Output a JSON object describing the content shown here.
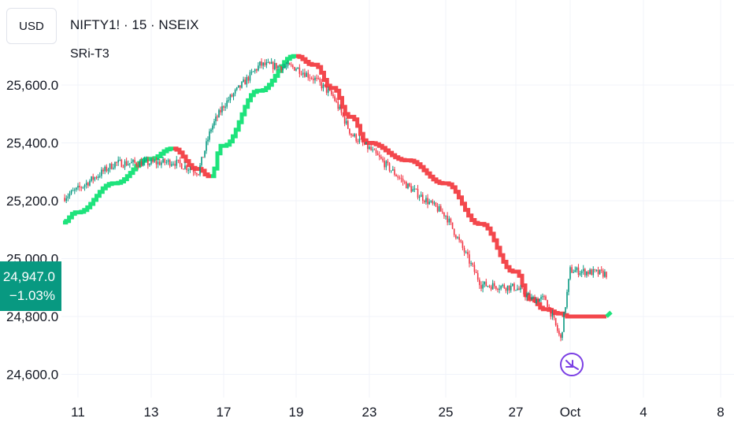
{
  "header": {
    "currency": "USD",
    "symbol_title": "NIFTY1! · 15 · NSEIX",
    "indicator_name": "SRi-T3"
  },
  "price_badge": {
    "price": "24,947.0",
    "change": "−1.03%",
    "color": "#089981"
  },
  "event_marker": {
    "icon": "flight-arrow-icon",
    "color": "#7b3fe4",
    "date": "Oct"
  },
  "colors": {
    "bullish": "#1ee37c",
    "bearish": "#f3474c",
    "grid": "#f0f3fa"
  },
  "chart_data": {
    "type": "line",
    "title": "NIFTY1! · 15 · NSEIX",
    "y_ticks": [
      "25,600.0",
      "25,400.0",
      "25,200.0",
      "25,000.0",
      "24,800.0",
      "24,600.0"
    ],
    "y_tick_values": [
      25600,
      25400,
      25200,
      25000,
      24800,
      24600
    ],
    "x_ticks": [
      "11",
      "13",
      "17",
      "19",
      "23",
      "25",
      "27",
      "Oct",
      "4",
      "8"
    ],
    "ylim": [
      24560,
      25760
    ],
    "grid": true,
    "last_price": 24947.0,
    "change_pct": -1.03,
    "series": [
      {
        "name": "SRi-T3",
        "style": "step",
        "points": [
          {
            "x": "10",
            "y": 25125,
            "trend": "up"
          },
          {
            "x": "11",
            "y": 25160,
            "trend": "up"
          },
          {
            "x": "12",
            "y": 25260,
            "trend": "up"
          },
          {
            "x": "13",
            "y": 25345,
            "trend": "up"
          },
          {
            "x": "14",
            "y": 25380,
            "trend": "down"
          },
          {
            "x": "15",
            "y": 25310,
            "trend": "down"
          },
          {
            "x": "16",
            "y": 25285,
            "trend": "up"
          },
          {
            "x": "17",
            "y": 25390,
            "trend": "up"
          },
          {
            "x": "18",
            "y": 25580,
            "trend": "up"
          },
          {
            "x": "19",
            "y": 25700,
            "trend": "down"
          },
          {
            "x": "20",
            "y": 25670,
            "trend": "down"
          },
          {
            "x": "21",
            "y": 25590,
            "trend": "down"
          },
          {
            "x": "22",
            "y": 25490,
            "trend": "down"
          },
          {
            "x": "23",
            "y": 25400,
            "trend": "down"
          },
          {
            "x": "24",
            "y": 25340,
            "trend": "down"
          },
          {
            "x": "25",
            "y": 25260,
            "trend": "down"
          },
          {
            "x": "26",
            "y": 25120,
            "trend": "down"
          },
          {
            "x": "27",
            "y": 24955,
            "trend": "down"
          },
          {
            "x": "28",
            "y": 24860,
            "trend": "down"
          },
          {
            "x": "29",
            "y": 24825,
            "trend": "down"
          },
          {
            "x": "30",
            "y": 24810,
            "trend": "down"
          },
          {
            "x": "Oct",
            "y": 24800,
            "trend": "down"
          },
          {
            "x": "2",
            "y": 24800,
            "trend": "up"
          }
        ]
      },
      {
        "name": "NIFTY1! · 15 · NSEIX",
        "style": "candles",
        "points": [
          {
            "x": "10",
            "y": 25210
          },
          {
            "x": "11",
            "y": 25240
          },
          {
            "x": "12",
            "y": 25330
          },
          {
            "x": "13",
            "y": 25330
          },
          {
            "x": "14",
            "y": 25335
          },
          {
            "x": "15",
            "y": 25300
          },
          {
            "x": "16",
            "y": 25450
          },
          {
            "x": "17",
            "y": 25530
          },
          {
            "x": "18",
            "y": 25670
          },
          {
            "x": "19",
            "y": 25660
          },
          {
            "x": "20",
            "y": 25620
          },
          {
            "x": "21",
            "y": 25560
          },
          {
            "x": "22",
            "y": 25430
          },
          {
            "x": "23",
            "y": 25380
          },
          {
            "x": "24",
            "y": 25250
          },
          {
            "x": "25",
            "y": 25150
          },
          {
            "x": "26",
            "y": 24910
          },
          {
            "x": "27",
            "y": 24900
          },
          {
            "x": "28",
            "y": 24860
          },
          {
            "x": "29",
            "y": 24860
          },
          {
            "x": "30",
            "y": 24720
          },
          {
            "x": "Oct",
            "y": 24960
          },
          {
            "x": "2",
            "y": 24947
          }
        ]
      }
    ]
  }
}
